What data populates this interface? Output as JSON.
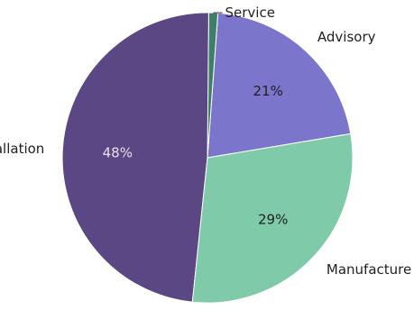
{
  "chart_data": {
    "type": "pie",
    "title": "",
    "slices": [
      {
        "name": "Advisory",
        "value": 21,
        "color": "#7b75cc",
        "pct_label": "21%"
      },
      {
        "name": "Service",
        "value": 1,
        "color": "#3f7f69",
        "pct_label": ""
      },
      {
        "name": "Installation",
        "value": 48,
        "color": "#5b4784",
        "pct_label": "48%"
      },
      {
        "name": "Manufacture",
        "value": 29,
        "color": "#7ecaa9",
        "pct_label": "29%"
      }
    ],
    "legend": "none",
    "start_angle_deg": 9.5
  }
}
